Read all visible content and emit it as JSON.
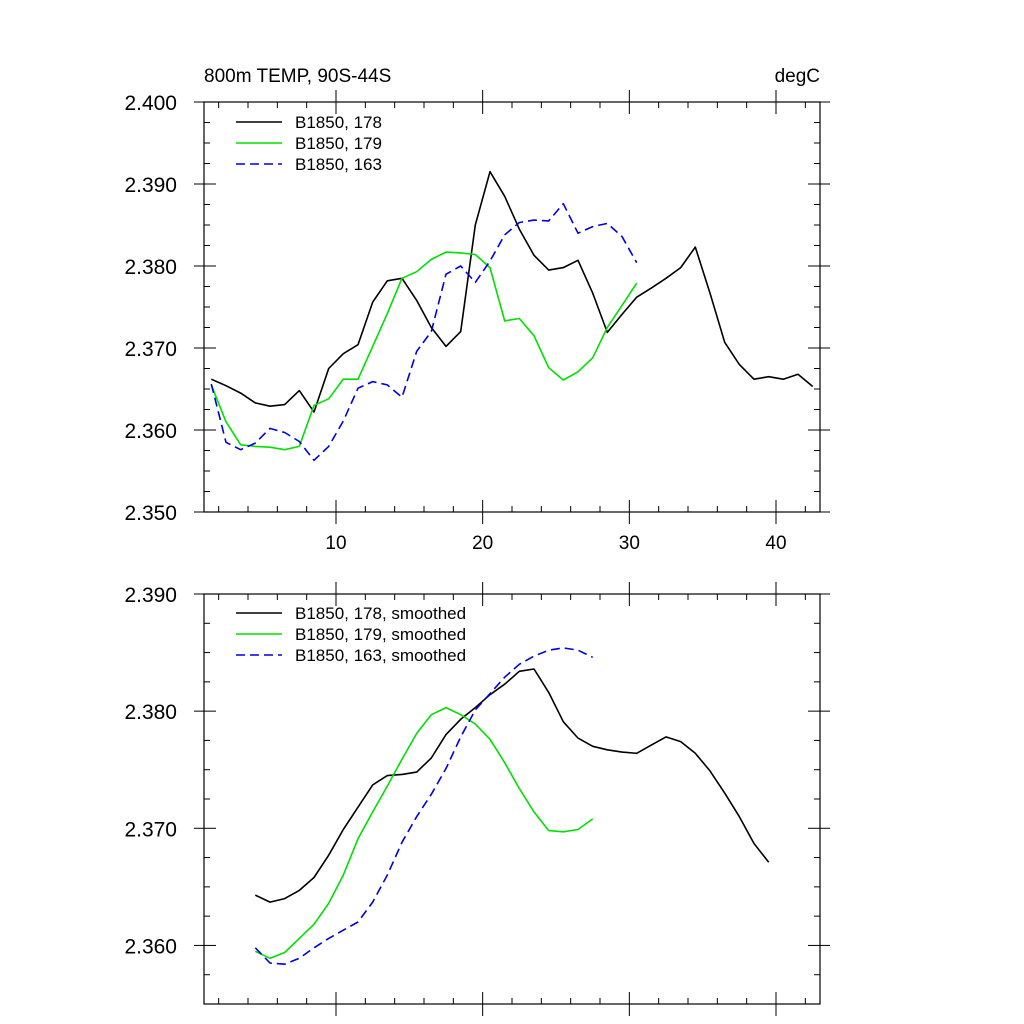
{
  "chart_data": [
    {
      "type": "line",
      "title": "800m TEMP, 90S-44S",
      "units": "degC",
      "xlabel": "",
      "ylabel": "",
      "xlim": [
        1,
        43
      ],
      "ylim": [
        2.35,
        2.4
      ],
      "xticks": [
        10,
        20,
        30,
        40
      ],
      "xtick_labels": [
        "10",
        "20",
        "30",
        "40"
      ],
      "yticks": [
        2.35,
        2.36,
        2.37,
        2.38,
        2.39,
        2.4
      ],
      "ytick_labels": [
        "2.350",
        "2.360",
        "2.370",
        "2.380",
        "2.390",
        "2.400"
      ],
      "legend_position": "top-left",
      "series": [
        {
          "name": "B1850, 178",
          "color": "#000000",
          "dash": "solid",
          "x": [
            1.5,
            2.5,
            3.5,
            4.5,
            5.5,
            6.5,
            7.5,
            8.5,
            9.5,
            10.5,
            11.5,
            12.5,
            13.5,
            14.5,
            15.5,
            16.5,
            17.5,
            18.5,
            19.5,
            20.5,
            21.5,
            22.5,
            23.5,
            24.5,
            25.5,
            26.5,
            27.5,
            28.5,
            29.5,
            30.5,
            31.5,
            32.5,
            33.5,
            34.5,
            35.5,
            36.5,
            37.5,
            38.5,
            39.5,
            40.5,
            41.5,
            42.5
          ],
          "y": [
            2.3662,
            2.3654,
            2.3645,
            2.3633,
            2.3629,
            2.3631,
            2.3648,
            2.3622,
            2.3675,
            2.3693,
            2.3704,
            2.3756,
            2.3782,
            2.3785,
            2.3758,
            2.3725,
            2.3702,
            2.372,
            2.385,
            2.3915,
            2.3885,
            2.3845,
            2.3813,
            2.3795,
            2.3798,
            2.3807,
            2.3767,
            2.3719,
            2.3741,
            2.3762,
            2.3773,
            2.3785,
            2.3798,
            2.3823,
            2.3767,
            2.3707,
            2.368,
            2.3662,
            2.3665,
            2.3662,
            2.3668,
            2.3653
          ]
        },
        {
          "name": "B1850, 179",
          "color": "#00e000",
          "dash": "solid",
          "x": [
            1.5,
            2.5,
            3.5,
            4.5,
            5.5,
            6.5,
            7.5,
            8.5,
            9.5,
            10.5,
            11.5,
            12.5,
            13.5,
            14.5,
            15.5,
            16.5,
            17.5,
            18.5,
            19.5,
            20.5,
            21.5,
            22.5,
            23.5,
            24.5,
            25.5,
            26.5,
            27.5,
            28.5,
            29.5,
            30.5
          ],
          "y": [
            2.3655,
            2.361,
            2.3582,
            2.358,
            2.3579,
            2.3576,
            2.358,
            2.363,
            2.3638,
            2.3662,
            2.3662,
            2.3702,
            2.3742,
            2.3785,
            2.3793,
            2.3808,
            2.3817,
            2.3816,
            2.3814,
            2.3798,
            2.3733,
            2.3736,
            2.3715,
            2.3676,
            2.3661,
            2.3671,
            2.3688,
            2.3725,
            2.3752,
            2.3779
          ]
        },
        {
          "name": "B1850, 163",
          "color": "#0000e0",
          "dash": "dashed",
          "x": [
            1.5,
            2.5,
            3.5,
            4.5,
            5.5,
            6.5,
            7.5,
            8.5,
            9.5,
            10.5,
            11.5,
            12.5,
            13.5,
            14.5,
            15.5,
            16.5,
            17.5,
            18.5,
            19.5,
            20.5,
            21.5,
            22.5,
            23.5,
            24.5,
            25.5,
            26.5,
            27.5,
            28.5,
            29.5,
            30.5
          ],
          "y": [
            2.3656,
            2.3585,
            2.3576,
            2.3584,
            2.3602,
            2.3597,
            2.3586,
            2.3563,
            2.358,
            2.3611,
            2.3651,
            2.3659,
            2.3655,
            2.364,
            2.3696,
            2.372,
            2.379,
            2.38,
            2.378,
            2.3806,
            2.3838,
            2.3853,
            2.3856,
            2.3855,
            2.3876,
            2.384,
            2.3848,
            2.3852,
            2.3836,
            2.3804
          ]
        }
      ]
    },
    {
      "type": "line",
      "title": "",
      "xlabel": "",
      "ylabel": "",
      "xlim": [
        1,
        43
      ],
      "ylim": [
        2.355,
        2.39
      ],
      "xticks": [
        10,
        20,
        30,
        40
      ],
      "yticks": [
        2.36,
        2.37,
        2.38,
        2.39
      ],
      "ytick_labels": [
        "2.360",
        "2.370",
        "2.380",
        "2.390"
      ],
      "legend_position": "top-left",
      "series": [
        {
          "name": "B1850, 178, smoothed",
          "color": "#000000",
          "dash": "solid",
          "x": [
            4.5,
            5.5,
            6.5,
            7.5,
            8.5,
            9.5,
            10.5,
            11.5,
            12.5,
            13.5,
            14.5,
            15.5,
            16.5,
            17.5,
            18.5,
            19.5,
            20.5,
            21.5,
            22.5,
            23.5,
            24.5,
            25.5,
            26.5,
            27.5,
            28.5,
            29.5,
            30.5,
            31.5,
            32.5,
            33.5,
            34.5,
            35.5,
            36.5,
            37.5,
            38.5,
            39.5
          ],
          "y": [
            2.3643,
            2.3637,
            2.364,
            2.3647,
            2.3658,
            2.3677,
            2.3699,
            2.3718,
            2.3737,
            2.3745,
            2.3746,
            2.3748,
            2.376,
            2.378,
            2.3793,
            2.3803,
            2.3814,
            2.3823,
            2.3834,
            2.3836,
            2.3816,
            2.3791,
            2.3777,
            2.377,
            2.3767,
            2.3765,
            2.3764,
            2.3771,
            2.3778,
            2.3774,
            2.3764,
            2.3749,
            2.373,
            2.371,
            2.3687,
            2.3671
          ]
        },
        {
          "name": "B1850, 179, smoothed",
          "color": "#00e000",
          "dash": "solid",
          "x": [
            4.5,
            5.5,
            6.5,
            7.5,
            8.5,
            9.5,
            10.5,
            11.5,
            12.5,
            13.5,
            14.5,
            15.5,
            16.5,
            17.5,
            18.5,
            19.5,
            20.5,
            21.5,
            22.5,
            23.5,
            24.5,
            25.5,
            26.5,
            27.5
          ],
          "y": [
            2.3595,
            2.3589,
            2.3594,
            2.3606,
            2.3618,
            2.3636,
            2.366,
            2.3691,
            2.3714,
            2.3736,
            2.3759,
            2.3781,
            2.3797,
            2.3803,
            2.3797,
            2.3789,
            2.3776,
            2.3756,
            2.3734,
            2.3714,
            2.3698,
            2.3697,
            2.3699,
            2.3708
          ]
        },
        {
          "name": "B1850, 163, smoothed",
          "color": "#0000e0",
          "dash": "dashed",
          "x": [
            4.5,
            5.5,
            6.5,
            7.5,
            8.5,
            9.5,
            10.5,
            11.5,
            12.5,
            13.5,
            14.5,
            15.5,
            16.5,
            17.5,
            18.5,
            19.5,
            20.5,
            21.5,
            22.5,
            23.5,
            24.5,
            25.5,
            26.5,
            27.5
          ],
          "y": [
            2.3598,
            2.3585,
            2.3584,
            2.3589,
            2.3598,
            2.3606,
            2.3613,
            2.362,
            2.3637,
            2.366,
            2.3688,
            2.371,
            2.3729,
            2.3751,
            2.3778,
            2.3801,
            2.3815,
            2.3829,
            2.384,
            2.3847,
            2.3852,
            2.3854,
            2.3852,
            2.3846
          ]
        }
      ]
    }
  ]
}
